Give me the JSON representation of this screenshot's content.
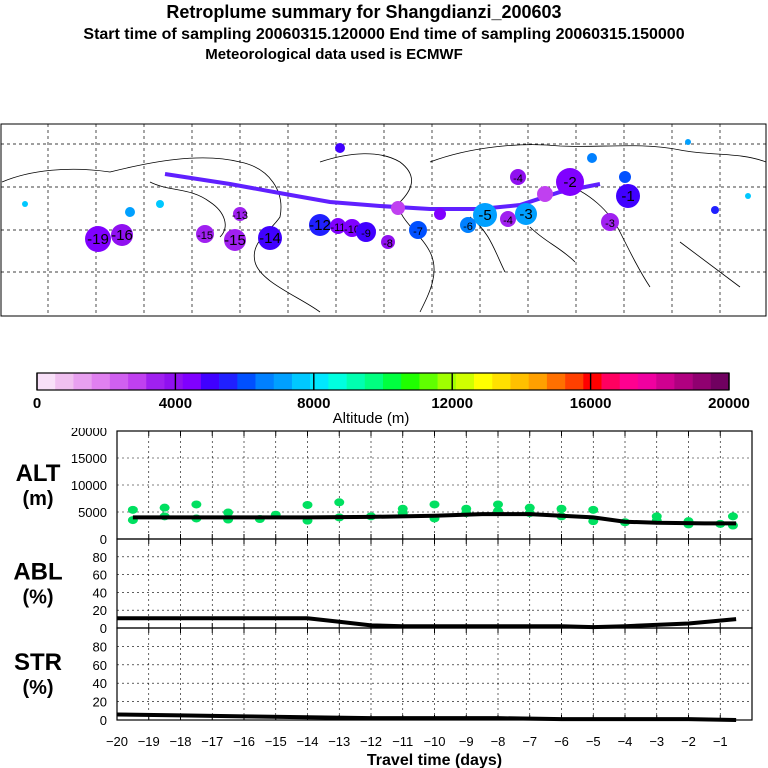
{
  "titles": {
    "main": "Retroplume summary for Shangdianzi_200603",
    "sampling": "Start time of sampling 20060315.120000     End time of sampling 20060315.150000",
    "met": "Meteorological data used is ECMWF"
  },
  "colorbar": {
    "label": "Altitude (m)",
    "ticks": [
      "0",
      "4000",
      "8000",
      "12000",
      "16000",
      "20000"
    ],
    "colors": [
      "#f8e0f8",
      "#f0c0f0",
      "#e8a0f0",
      "#e080f0",
      "#d060f0",
      "#c040f0",
      "#a020f0",
      "#9010f0",
      "#8000ff",
      "#4000ff",
      "#2020ff",
      "#0050ff",
      "#0080ff",
      "#00a0ff",
      "#00c8ff",
      "#00e8ff",
      "#00ffe0",
      "#00ffb0",
      "#00ff80",
      "#00ff40",
      "#20ff00",
      "#60ff00",
      "#a0ff00",
      "#d0ff00",
      "#ffff00",
      "#ffe000",
      "#ffc000",
      "#ffa000",
      "#ff7000",
      "#ff4000",
      "#ff0000",
      "#ff0060",
      "#ff0090",
      "#f000a0",
      "#d00090",
      "#b00080",
      "#900070",
      "#700060"
    ]
  },
  "map_labels": [
    "-19",
    "-16",
    "-15",
    "-14",
    "-13",
    "-12",
    "-11",
    "-10",
    "-9",
    "-8",
    "-7",
    "-6",
    "-5",
    "-4",
    "-3",
    "-2",
    "-1"
  ],
  "chart_data": [
    {
      "type": "line",
      "panel": "ALT",
      "ylabel_top": "ALT",
      "ylabel_bottom": "(m)",
      "ylim": [
        0,
        20000
      ],
      "yticks": [
        "0",
        "5000",
        "10000",
        "15000",
        "20000"
      ],
      "x": [
        -19.5,
        -18,
        -16,
        -14,
        -12,
        -10,
        -8.5,
        -7,
        -6,
        -5,
        -4,
        -3,
        -1.5,
        -0.5
      ],
      "values": [
        4000,
        4000,
        4000,
        4000,
        4100,
        4300,
        4600,
        4600,
        4300,
        4000,
        3200,
        3000,
        2900,
        2900
      ],
      "scatter": [
        [
          -19.5,
          5400
        ],
        [
          -19.5,
          3500
        ],
        [
          -18.5,
          4200
        ],
        [
          -18.5,
          5800
        ],
        [
          -17.5,
          3800
        ],
        [
          -17.5,
          6400
        ],
        [
          -16.5,
          3600
        ],
        [
          -16.5,
          4900
        ],
        [
          -15.5,
          3700
        ],
        [
          -15,
          4500
        ],
        [
          -14,
          3400
        ],
        [
          -14,
          6300
        ],
        [
          -13,
          4000
        ],
        [
          -13,
          6800
        ],
        [
          -12,
          4200
        ],
        [
          -11,
          4800
        ],
        [
          -11,
          5600
        ],
        [
          -10,
          3800
        ],
        [
          -10,
          6400
        ],
        [
          -9,
          4800
        ],
        [
          -9,
          5600
        ],
        [
          -8,
          5200
        ],
        [
          -8,
          6400
        ],
        [
          -7,
          4800
        ],
        [
          -7,
          5800
        ],
        [
          -6,
          4200
        ],
        [
          -6,
          5600
        ],
        [
          -5,
          3300
        ],
        [
          -5,
          5400
        ],
        [
          -4,
          3100
        ],
        [
          -3,
          3400
        ],
        [
          -3,
          4200
        ],
        [
          -2,
          2700
        ],
        [
          -2,
          3300
        ],
        [
          -1,
          2800
        ],
        [
          -0.6,
          2500
        ],
        [
          -0.6,
          4200
        ]
      ]
    },
    {
      "type": "line",
      "panel": "ABL",
      "ylabel_top": "ABL",
      "ylabel_bottom": "(%)",
      "ylim": [
        0,
        100
      ],
      "yticks": [
        "0",
        "20",
        "40",
        "60",
        "80"
      ],
      "x": [
        -20,
        -18,
        -16,
        -14,
        -13,
        -12,
        -11,
        -10,
        -8,
        -6,
        -5,
        -4,
        -2,
        -0.5
      ],
      "values": [
        11,
        11,
        11,
        11,
        7,
        3,
        2,
        2,
        2,
        2,
        1,
        2,
        5,
        10
      ]
    },
    {
      "type": "line",
      "panel": "STR",
      "ylabel_top": "STR",
      "ylabel_bottom": "(%)",
      "ylim": [
        0,
        100
      ],
      "yticks": [
        "0",
        "20",
        "40",
        "60",
        "80"
      ],
      "x": [
        -20,
        -18,
        -16,
        -14,
        -12,
        -10,
        -8,
        -6,
        -4,
        -2,
        -0.5
      ],
      "values": [
        6,
        5,
        4,
        3,
        2,
        2,
        2,
        1,
        1,
        1,
        0
      ]
    }
  ],
  "xaxis": {
    "label": "Travel time (days)",
    "ticks": [
      -20,
      -19,
      -18,
      -17,
      -16,
      -15,
      -14,
      -13,
      -12,
      -11,
      -10,
      -9,
      -8,
      -7,
      -6,
      -5,
      -4,
      -3,
      -2,
      -1
    ],
    "tick_labels": [
      "−20",
      "−19",
      "−18",
      "−17",
      "−16",
      "−15",
      "−14",
      "−13",
      "−12",
      "−11",
      "−10",
      "−9",
      "−8",
      "−7",
      "−6",
      "−5",
      "−4",
      "−3",
      "−2",
      "−1"
    ],
    "range": [
      -20,
      0
    ]
  }
}
